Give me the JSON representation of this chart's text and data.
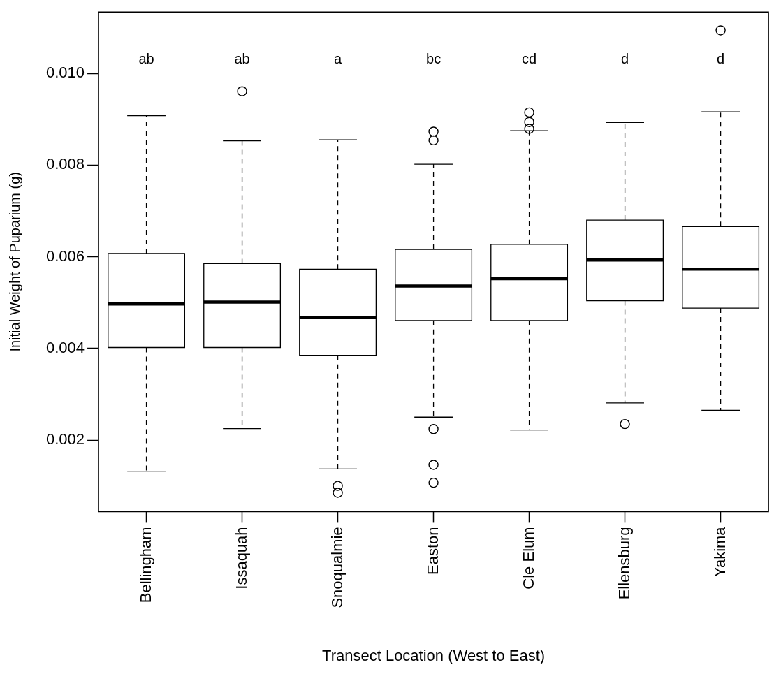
{
  "chart_data": {
    "type": "box",
    "xlabel": "Transect Location (West to East)",
    "ylabel": "Initial Weight of Puparium (g)",
    "categories": [
      "Bellingham",
      "Issaquah",
      "Snoqualmie",
      "Easton",
      "Cle Elum",
      "Ellensburg",
      "Yakima"
    ],
    "boxes": [
      {
        "low": 0.00132,
        "q1": 0.00402,
        "median": 0.00497,
        "q3": 0.00607,
        "high": 0.00908
      },
      {
        "low": 0.00225,
        "q1": 0.00402,
        "median": 0.00501,
        "q3": 0.00585,
        "high": 0.00853,
        "outliers": [
          0.00961
        ]
      },
      {
        "low": 0.00137,
        "q1": 0.00385,
        "median": 0.00467,
        "q3": 0.00573,
        "high": 0.00855,
        "outliers": [
          0.001,
          0.00085
        ]
      },
      {
        "low": 0.0025,
        "q1": 0.00461,
        "median": 0.00536,
        "q3": 0.00616,
        "high": 0.00802,
        "outliers": [
          0.00873,
          0.00854,
          0.00224,
          0.00146,
          0.00107
        ]
      },
      {
        "low": 0.00222,
        "q1": 0.00461,
        "median": 0.00552,
        "q3": 0.00627,
        "high": 0.00875,
        "outliers": [
          0.00915,
          0.00894,
          0.00879
        ]
      },
      {
        "low": 0.00281,
        "q1": 0.00504,
        "median": 0.00593,
        "q3": 0.0068,
        "high": 0.00893,
        "outliers": [
          0.00235
        ]
      },
      {
        "low": 0.00265,
        "q1": 0.00488,
        "median": 0.00573,
        "q3": 0.00666,
        "high": 0.00916,
        "outliers": [
          0.01094
        ]
      }
    ],
    "ylim": [
      0.00044,
      0.01134
    ],
    "yticks": [
      {
        "value": 0.002,
        "label": "0.002"
      },
      {
        "value": 0.004,
        "label": "0.004"
      },
      {
        "value": 0.006,
        "label": "0.006"
      },
      {
        "value": 0.008,
        "label": "0.008"
      },
      {
        "value": 0.01,
        "label": "0.010"
      }
    ],
    "grid": false,
    "annotations": [
      "ab",
      "ab",
      "a",
      "bc",
      "cd",
      "d",
      "d"
    ]
  }
}
